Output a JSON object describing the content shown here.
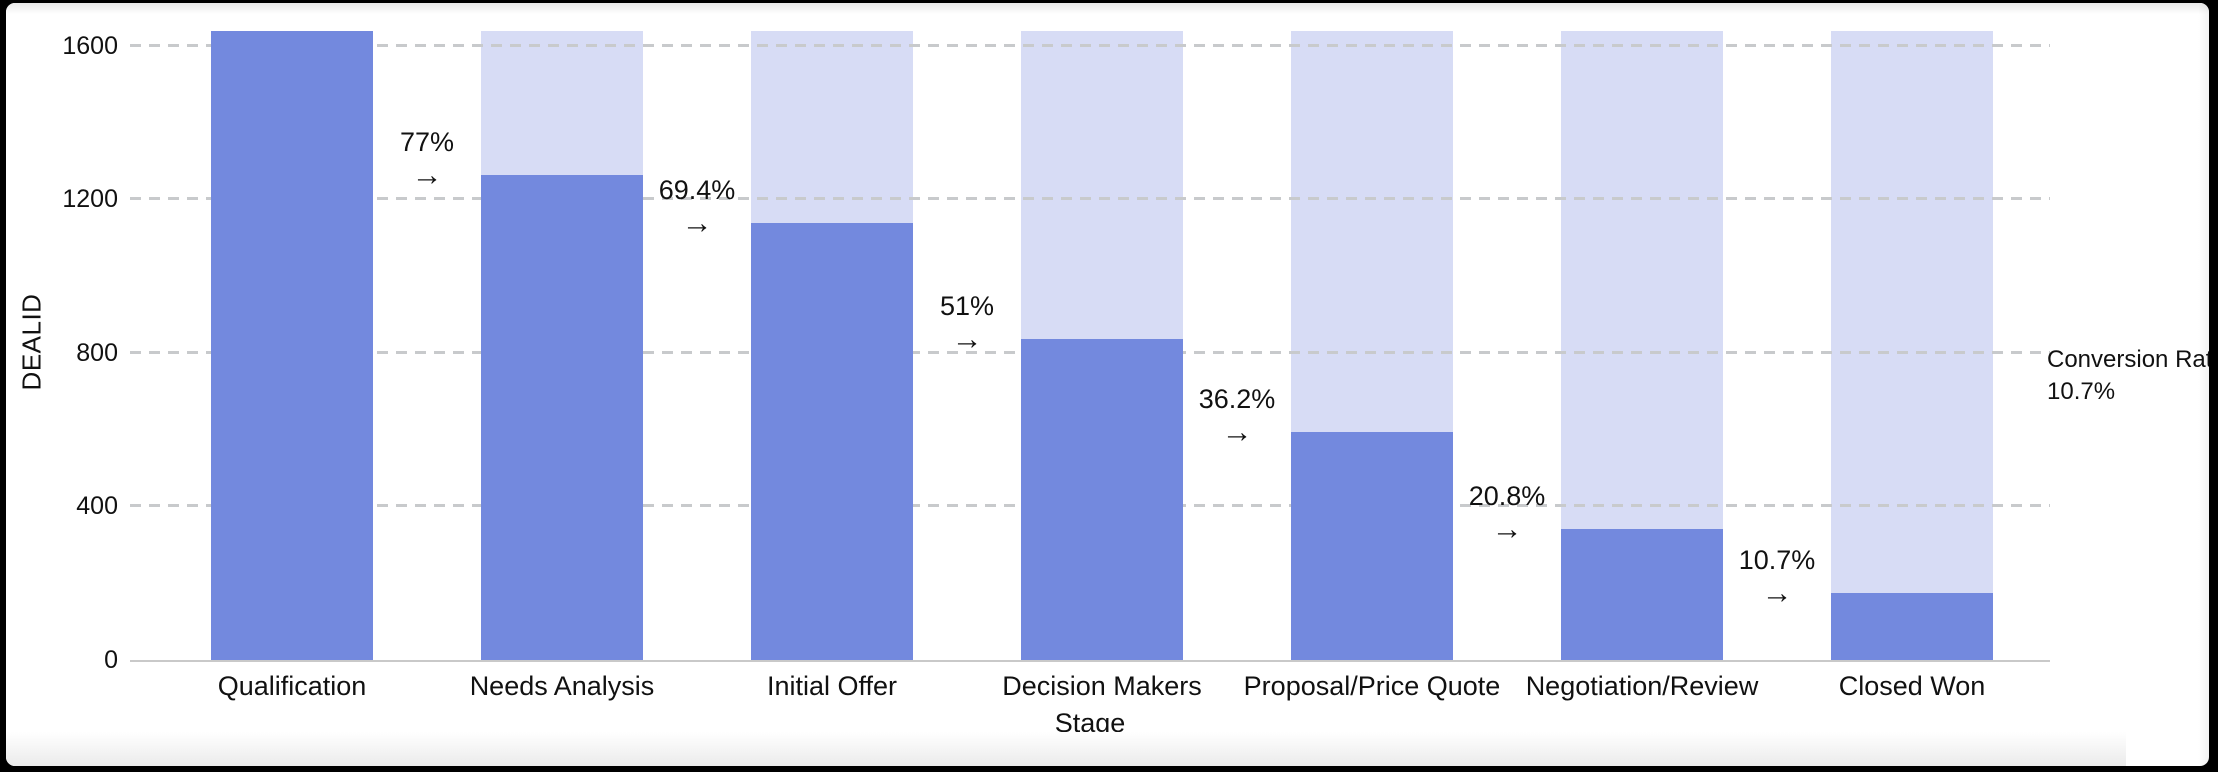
{
  "frame": {
    "background": "#000000",
    "canvas_background": "#FFFFFF"
  },
  "chart_data": {
    "type": "bar",
    "variant": "funnel-conversion",
    "title": "",
    "xlabel": "Stage",
    "ylabel": "DEALID",
    "categories": [
      "Qualification",
      "Needs Analysis",
      "Initial Offer",
      "Decision Makers",
      "Proposal/Price Quote",
      "Negotiation/Review",
      "Closed Won"
    ],
    "values": [
      1640,
      1263,
      1138,
      836,
      594,
      341,
      175
    ],
    "background_bar_value": 1640,
    "conversion_labels": [
      "77%",
      "69.4%",
      "51%",
      "36.2%",
      "20.8%",
      "10.7%"
    ],
    "arrow_glyph": "→",
    "y_ticks": [
      0,
      400,
      800,
      1200,
      1600
    ],
    "ylim": [
      0,
      1644
    ],
    "grid": "horizontal-dashed",
    "legend_position": "none",
    "final_annotation": {
      "line1": "Conversion Rate:",
      "line2": "10.7%"
    },
    "colors": {
      "bar": "#7389DE",
      "bar_background": "#D7DCF5",
      "gridline": "#C8CACC",
      "axis_line": "#C9C9C9",
      "text": "#111111"
    }
  }
}
